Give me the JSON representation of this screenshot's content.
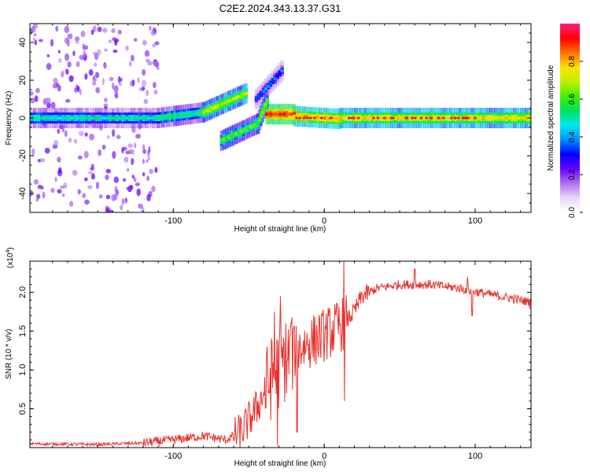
{
  "title": "C2E2.2024.343.13.37.G31",
  "chart_data": [
    {
      "type": "heatmap",
      "xlabel": "Height of straight line (km)",
      "ylabel": "Frequency (Hz)",
      "xlim": [
        -195,
        137
      ],
      "ylim": [
        -50,
        50
      ],
      "xticks": [
        -100,
        0,
        100
      ],
      "yticks": [
        -40,
        -20,
        0,
        20,
        40
      ],
      "colorbar": {
        "label": "Normalized spectral amplitude",
        "range": [
          0,
          1
        ],
        "ticks": [
          "0.0",
          "0.2",
          "0.4",
          "0.6",
          "0.8"
        ],
        "colors": [
          "#ffffff",
          "#e8d8f8",
          "#b070f0",
          "#6a00ff",
          "#0000ff",
          "#0090ff",
          "#00e8f0",
          "#00e060",
          "#40f000",
          "#c0f000",
          "#ffe000",
          "#ff7000",
          "#ff0000",
          "#ff2080"
        ]
      },
      "tone_segments": [
        {
          "x0": -195,
          "x1": -110,
          "f0": 0,
          "f1": 0,
          "amp": 0.5
        },
        {
          "x0": -110,
          "x1": -80,
          "f0": 0,
          "f1": 3,
          "amp": 0.55
        },
        {
          "x0": -80,
          "x1": -52,
          "f0": 3,
          "f1": 13,
          "amp": 0.7
        },
        {
          "x0": -45,
          "x1": -28,
          "f0": 10,
          "f1": 25,
          "amp": 0.35
        },
        {
          "x0": -68,
          "x1": -44,
          "f0": -12,
          "f1": -3,
          "amp": 0.6
        },
        {
          "x0": -44,
          "x1": -38,
          "f0": -3,
          "f1": 9,
          "amp": 0.6
        },
        {
          "x0": -38,
          "x1": -20,
          "f0": 2,
          "f1": 2,
          "amp": 0.9
        },
        {
          "x0": -20,
          "x1": 10,
          "f0": 1,
          "f1": -0.5,
          "amp": 0.8
        },
        {
          "x0": 10,
          "x1": 137,
          "f0": 0,
          "f1": 0,
          "amp": 0.75
        }
      ]
    },
    {
      "type": "line",
      "xlabel": "Height of straight line (km)",
      "ylabel": "SNR (10 * v/v)",
      "y_scale_label": "(x10",
      "y_scale_exp": "4",
      "xlim": [
        -195,
        137
      ],
      "ylim": [
        0,
        2.4
      ],
      "xticks": [
        -100,
        0,
        100
      ],
      "yticks": [
        0.5,
        1.0,
        1.5,
        2.0
      ],
      "color": "#e8302c",
      "envelope": [
        {
          "x": -195,
          "y": 0.05
        },
        {
          "x": -150,
          "y": 0.04
        },
        {
          "x": -120,
          "y": 0.06
        },
        {
          "x": -100,
          "y": 0.1
        },
        {
          "x": -80,
          "y": 0.15
        },
        {
          "x": -65,
          "y": 0.1
        },
        {
          "x": -55,
          "y": 0.2
        },
        {
          "x": -45,
          "y": 0.5
        },
        {
          "x": -35,
          "y": 0.9
        },
        {
          "x": -25,
          "y": 1.15
        },
        {
          "x": -15,
          "y": 1.3
        },
        {
          "x": -5,
          "y": 1.4
        },
        {
          "x": 5,
          "y": 1.5
        },
        {
          "x": 13,
          "y": 1.6
        },
        {
          "x": 20,
          "y": 1.75
        },
        {
          "x": 25,
          "y": 1.95
        },
        {
          "x": 35,
          "y": 2.05
        },
        {
          "x": 50,
          "y": 2.1
        },
        {
          "x": 70,
          "y": 2.1
        },
        {
          "x": 90,
          "y": 2.05
        },
        {
          "x": 110,
          "y": 1.97
        },
        {
          "x": 125,
          "y": 1.92
        },
        {
          "x": 137,
          "y": 1.87
        }
      ],
      "spikes": [
        {
          "x": -29,
          "y": 1.95
        },
        {
          "x": -33,
          "y": 1.75
        },
        {
          "x": -31,
          "y": 0.02
        },
        {
          "x": -22,
          "y": 1.6
        },
        {
          "x": -18,
          "y": 0.2
        },
        {
          "x": 13,
          "y": 2.4
        },
        {
          "x": 13.5,
          "y": 0.6
        },
        {
          "x": 60,
          "y": 2.3
        },
        {
          "x": 95,
          "y": 2.2
        },
        {
          "x": 98,
          "y": 1.7
        }
      ]
    }
  ]
}
